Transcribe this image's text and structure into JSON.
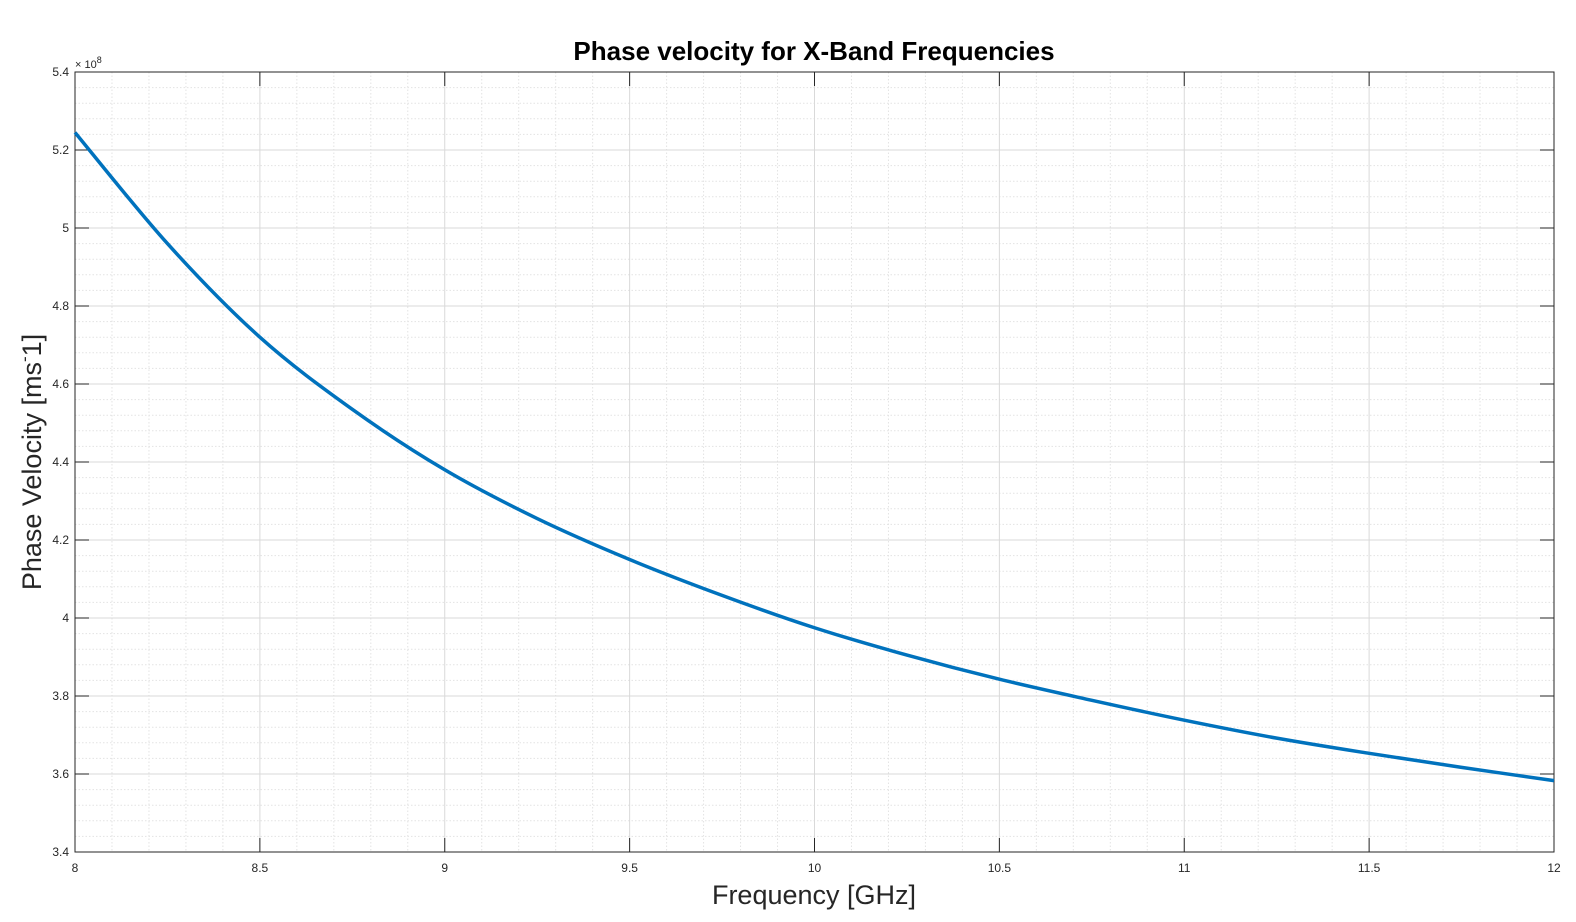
{
  "chart_data": {
    "type": "line",
    "title": "Phase velocity for X-Band Frequencies",
    "xlabel": "Frequency [GHz]",
    "ylabel": "Phase Velocity [ms",
    "ylabel_sup": "-",
    "ylabel_end": "1]",
    "xlim": [
      8,
      12
    ],
    "ylim": [
      3.4,
      5.4
    ],
    "y_exponent_base": "× 10",
    "y_exponent_power": "8",
    "x_ticks": [
      "8",
      "8.5",
      "9",
      "9.5",
      "10",
      "10.5",
      "11",
      "11.5",
      "12"
    ],
    "y_ticks": [
      "3.4",
      "3.6",
      "3.8",
      "4",
      "4.2",
      "4.4",
      "4.6",
      "4.8",
      "5",
      "5.2",
      "5.4"
    ],
    "grid": true,
    "minor_grid": true,
    "line_color": "#0072BD",
    "series": [
      {
        "x": [
          8.0,
          8.25,
          8.5,
          8.75,
          9.0,
          9.25,
          9.5,
          9.75,
          10.0,
          10.25,
          10.5,
          10.75,
          11.0,
          11.25,
          11.5,
          11.75,
          12.0
        ],
        "values": [
          5.245,
          4.96,
          4.72,
          4.535,
          4.38,
          4.255,
          4.15,
          4.058,
          3.975,
          3.905,
          3.843,
          3.789,
          3.738,
          3.692,
          3.653,
          3.617,
          3.583
        ]
      }
    ]
  }
}
